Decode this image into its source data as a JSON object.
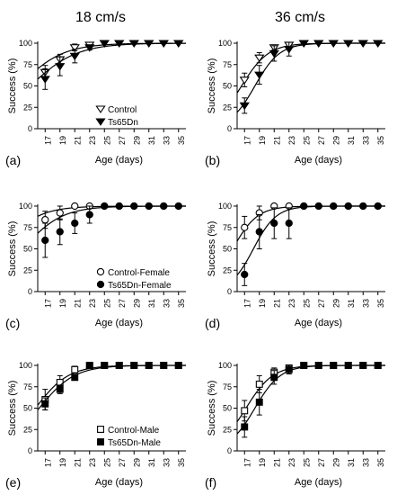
{
  "column_titles": [
    "18 cm/s",
    "36 cm/s"
  ],
  "chart_data": [
    {
      "type": "line",
      "panel": "(a)",
      "xlabel": "Age (days)",
      "ylabel": "Success (%)",
      "xlim": [
        16,
        36
      ],
      "ylim": [
        0,
        100
      ],
      "xticks": [
        17,
        19,
        21,
        23,
        25,
        27,
        29,
        31,
        33,
        35
      ],
      "yticks": [
        0,
        25,
        50,
        75,
        100
      ],
      "legend": "center-bottom",
      "series": [
        {
          "name": "Control",
          "marker": "triangle-down-open",
          "x": [
            17,
            19,
            21,
            23,
            25,
            27,
            29,
            31,
            33,
            35
          ],
          "y": [
            66,
            81,
            95,
            98,
            100,
            100,
            100,
            100,
            100,
            100
          ],
          "err": [
            8,
            6,
            4,
            2,
            0,
            0,
            0,
            0,
            0,
            0
          ],
          "fit": {
            "top": 100,
            "x50": 13.5,
            "k": 0.34
          }
        },
        {
          "name": "Ts65Dn",
          "marker": "triangle-down-filled",
          "x": [
            17,
            19,
            21,
            23,
            25,
            27,
            29,
            31,
            33,
            35
          ],
          "y": [
            58,
            73,
            85,
            95,
            100,
            100,
            100,
            100,
            100,
            100
          ],
          "err": [
            12,
            11,
            8,
            3,
            0,
            0,
            0,
            0,
            0,
            0
          ],
          "fit": {
            "top": 100,
            "x50": 15.0,
            "k": 0.32
          }
        }
      ]
    },
    {
      "type": "line",
      "panel": "(b)",
      "xlabel": "Age (days)",
      "ylabel": "Success (%)",
      "xlim": [
        16,
        36
      ],
      "ylim": [
        0,
        100
      ],
      "xticks": [
        17,
        19,
        21,
        23,
        25,
        27,
        29,
        31,
        33,
        35
      ],
      "yticks": [
        0,
        25,
        50,
        75,
        100
      ],
      "series": [
        {
          "name": "Control",
          "marker": "triangle-down-open",
          "x": [
            17,
            19,
            21,
            23,
            25,
            27,
            29,
            31,
            33,
            35
          ],
          "y": [
            57,
            83,
            95,
            98,
            100,
            100,
            100,
            100,
            100,
            100
          ],
          "err": [
            8,
            6,
            3,
            2,
            0,
            0,
            0,
            0,
            0,
            0
          ],
          "fit": {
            "top": 100,
            "x50": 16.6,
            "k": 0.55
          }
        },
        {
          "name": "Ts65Dn",
          "marker": "triangle-down-filled",
          "x": [
            17,
            19,
            21,
            23,
            25,
            27,
            29,
            31,
            33,
            35
          ],
          "y": [
            27,
            63,
            88,
            93,
            100,
            100,
            100,
            100,
            100,
            100
          ],
          "err": [
            9,
            11,
            9,
            8,
            0,
            0,
            0,
            0,
            0,
            0
          ],
          "fit": {
            "top": 100,
            "x50": 18.4,
            "k": 0.6
          }
        }
      ]
    },
    {
      "type": "line",
      "panel": "(c)",
      "xlabel": "Age (days)",
      "ylabel": "Success (%)",
      "xlim": [
        16,
        36
      ],
      "ylim": [
        0,
        100
      ],
      "xticks": [
        17,
        19,
        21,
        23,
        25,
        27,
        29,
        31,
        33,
        35
      ],
      "yticks": [
        0,
        25,
        50,
        75,
        100
      ],
      "legend": "center-bottom",
      "series": [
        {
          "name": "Control-Female",
          "marker": "circle-open",
          "x": [
            17,
            19,
            21,
            23,
            25,
            27,
            29,
            31,
            33,
            35
          ],
          "y": [
            84,
            92,
            100,
            100,
            100,
            100,
            100,
            100,
            100,
            100
          ],
          "err": [
            10,
            8,
            0,
            0,
            0,
            0,
            0,
            0,
            0,
            0
          ],
          "fit": {
            "top": 100,
            "x50": 11.0,
            "k": 0.4
          }
        },
        {
          "name": "Ts65Dn-Female",
          "marker": "circle-filled",
          "x": [
            17,
            19,
            21,
            23,
            25,
            27,
            29,
            31,
            33,
            35
          ],
          "y": [
            60,
            70,
            80,
            90,
            100,
            100,
            100,
            100,
            100,
            100
          ],
          "err": [
            20,
            15,
            12,
            10,
            0,
            0,
            0,
            0,
            0,
            0
          ],
          "fit": {
            "top": 100,
            "x50": 14.0,
            "k": 0.38
          }
        }
      ]
    },
    {
      "type": "line",
      "panel": "(d)",
      "xlabel": "Age (days)",
      "ylabel": "Success (%)",
      "xlim": [
        16,
        36
      ],
      "ylim": [
        0,
        100
      ],
      "xticks": [
        17,
        19,
        21,
        23,
        25,
        27,
        29,
        31,
        33,
        35
      ],
      "yticks": [
        0,
        25,
        50,
        75,
        100
      ],
      "series": [
        {
          "name": "Control-Female",
          "marker": "circle-open",
          "x": [
            17,
            19,
            21,
            23,
            25,
            27,
            29,
            31,
            33,
            35
          ],
          "y": [
            75,
            92,
            100,
            100,
            100,
            100,
            100,
            100,
            100,
            100
          ],
          "err": [
            13,
            8,
            0,
            0,
            0,
            0,
            0,
            0,
            0,
            0
          ],
          "fit": {
            "top": 100,
            "x50": 15.4,
            "k": 0.6
          }
        },
        {
          "name": "Ts65Dn-Female",
          "marker": "circle-filled",
          "x": [
            17,
            19,
            21,
            23,
            25,
            27,
            29,
            31,
            33,
            35
          ],
          "y": [
            20,
            70,
            80,
            80,
            100,
            100,
            100,
            100,
            100,
            100
          ],
          "err": [
            13,
            20,
            18,
            18,
            0,
            0,
            0,
            0,
            0,
            0
          ],
          "fit": {
            "top": 100,
            "x50": 18.2,
            "k": 0.65
          }
        }
      ]
    },
    {
      "type": "line",
      "panel": "(e)",
      "xlabel": "Age (days)",
      "ylabel": "Success (%)",
      "xlim": [
        16,
        36
      ],
      "ylim": [
        0,
        100
      ],
      "xticks": [
        17,
        19,
        21,
        23,
        25,
        27,
        29,
        31,
        33,
        35
      ],
      "yticks": [
        0,
        25,
        50,
        75,
        100
      ],
      "legend": "center-bottom",
      "series": [
        {
          "name": "Control-Male",
          "marker": "square-open",
          "x": [
            17,
            19,
            21,
            23,
            25,
            27,
            29,
            31,
            33,
            35
          ],
          "y": [
            60,
            80,
            95,
            100,
            100,
            100,
            100,
            100,
            100,
            100
          ],
          "err": [
            12,
            8,
            4,
            0,
            0,
            0,
            0,
            0,
            0,
            0
          ],
          "fit": {
            "top": 100,
            "x50": 15.7,
            "k": 0.45
          }
        },
        {
          "name": "Ts65Dn-Male",
          "marker": "square-filled",
          "x": [
            17,
            19,
            21,
            23,
            25,
            27,
            29,
            31,
            33,
            35
          ],
          "y": [
            55,
            72,
            86,
            100,
            100,
            100,
            100,
            100,
            100,
            100
          ],
          "err": [
            7,
            5,
            3,
            0,
            0,
            0,
            0,
            0,
            0,
            0
          ],
          "fit": {
            "top": 100,
            "x50": 16.2,
            "k": 0.42
          }
        }
      ]
    },
    {
      "type": "line",
      "panel": "(f)",
      "xlabel": "Age (days)",
      "ylabel": "Success (%)",
      "xlim": [
        16,
        36
      ],
      "ylim": [
        0,
        100
      ],
      "xticks": [
        17,
        19,
        21,
        23,
        25,
        27,
        29,
        31,
        33,
        35
      ],
      "yticks": [
        0,
        25,
        50,
        75,
        100
      ],
      "series": [
        {
          "name": "Control-Male",
          "marker": "square-open",
          "x": [
            17,
            19,
            21,
            23,
            25,
            27,
            29,
            31,
            33,
            35
          ],
          "y": [
            47,
            78,
            92,
            97,
            100,
            100,
            100,
            100,
            100,
            100
          ],
          "err": [
            12,
            10,
            5,
            3,
            0,
            0,
            0,
            0,
            0,
            0
          ],
          "fit": {
            "top": 100,
            "x50": 17.2,
            "k": 0.55
          }
        },
        {
          "name": "Ts65Dn-Male",
          "marker": "square-filled",
          "x": [
            17,
            19,
            21,
            23,
            25,
            27,
            29,
            31,
            33,
            35
          ],
          "y": [
            28,
            57,
            86,
            95,
            100,
            100,
            100,
            100,
            100,
            100
          ],
          "err": [
            12,
            15,
            8,
            5,
            0,
            0,
            0,
            0,
            0,
            0
          ],
          "fit": {
            "top": 100,
            "x50": 18.4,
            "k": 0.58
          }
        }
      ]
    }
  ]
}
